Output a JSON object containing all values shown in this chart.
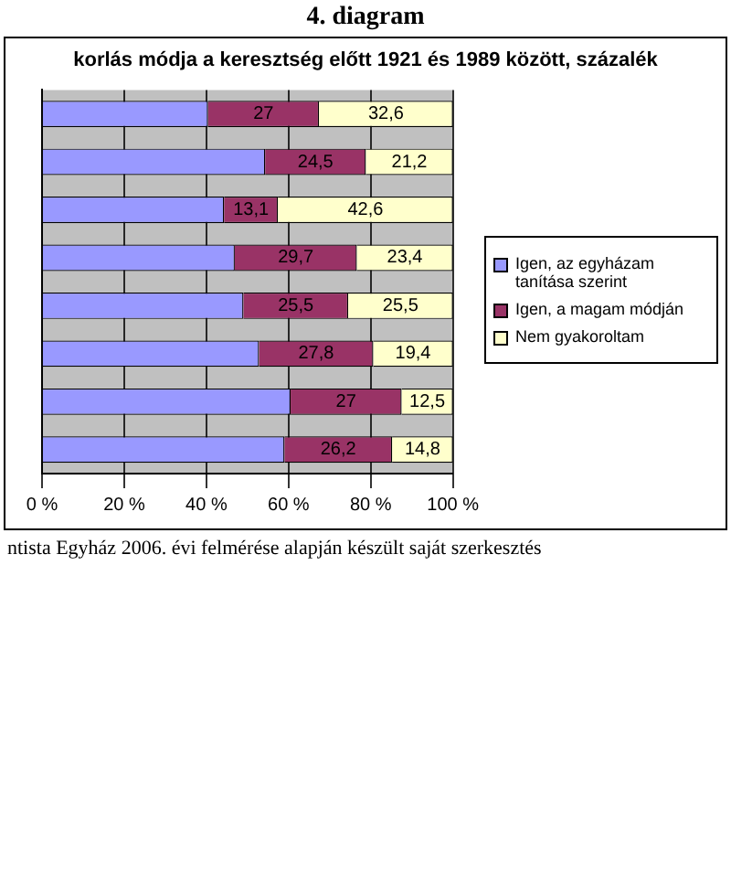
{
  "chart_data": {
    "type": "bar",
    "orientation": "horizontal",
    "stacked": true,
    "title": "korlás módja a keresztség előtt 1921 és 1989 között, százalék",
    "annotations": [
      "4. diagram",
      "ntista Egyház 2006. évi felmérése alapján készült saját szerkesztés"
    ],
    "categories": [
      null,
      null,
      null,
      null,
      null,
      null,
      null,
      null
    ],
    "series": [
      {
        "name": "Igen, az egyházam tanítása szerint",
        "color": "#9999ff",
        "values": [
          40.4,
          54.3,
          44.3,
          46.9,
          49,
          52.8,
          60.5,
          59
        ]
      },
      {
        "name": "Igen, a magam módján",
        "color": "#993366",
        "values": [
          27,
          24.5,
          13.1,
          29.7,
          25.5,
          27.8,
          27,
          26.2
        ],
        "value_labels": [
          "27",
          "24,5",
          "13,1",
          "29,7",
          "25,5",
          "27,8",
          "27",
          "26,2"
        ]
      },
      {
        "name": "Nem gyakoroltam",
        "color": "#ffffcc",
        "values": [
          32.6,
          21.2,
          42.6,
          23.4,
          25.5,
          19.4,
          12.5,
          14.8
        ],
        "value_labels": [
          "32,6",
          "21,2",
          "42,6",
          "23,4",
          "25,5",
          "19,4",
          "12,5",
          "14,8"
        ]
      }
    ],
    "xlim": [
      0,
      100
    ],
    "xticks": [
      {
        "value": 0,
        "label": "0 %"
      },
      {
        "value": 20,
        "label": "20 %"
      },
      {
        "value": 40,
        "label": "40 %"
      },
      {
        "value": 60,
        "label": "60 %"
      },
      {
        "value": 80,
        "label": "80 %"
      },
      {
        "value": 100,
        "label": "100 %"
      }
    ],
    "grid": "x",
    "legend": "right"
  }
}
